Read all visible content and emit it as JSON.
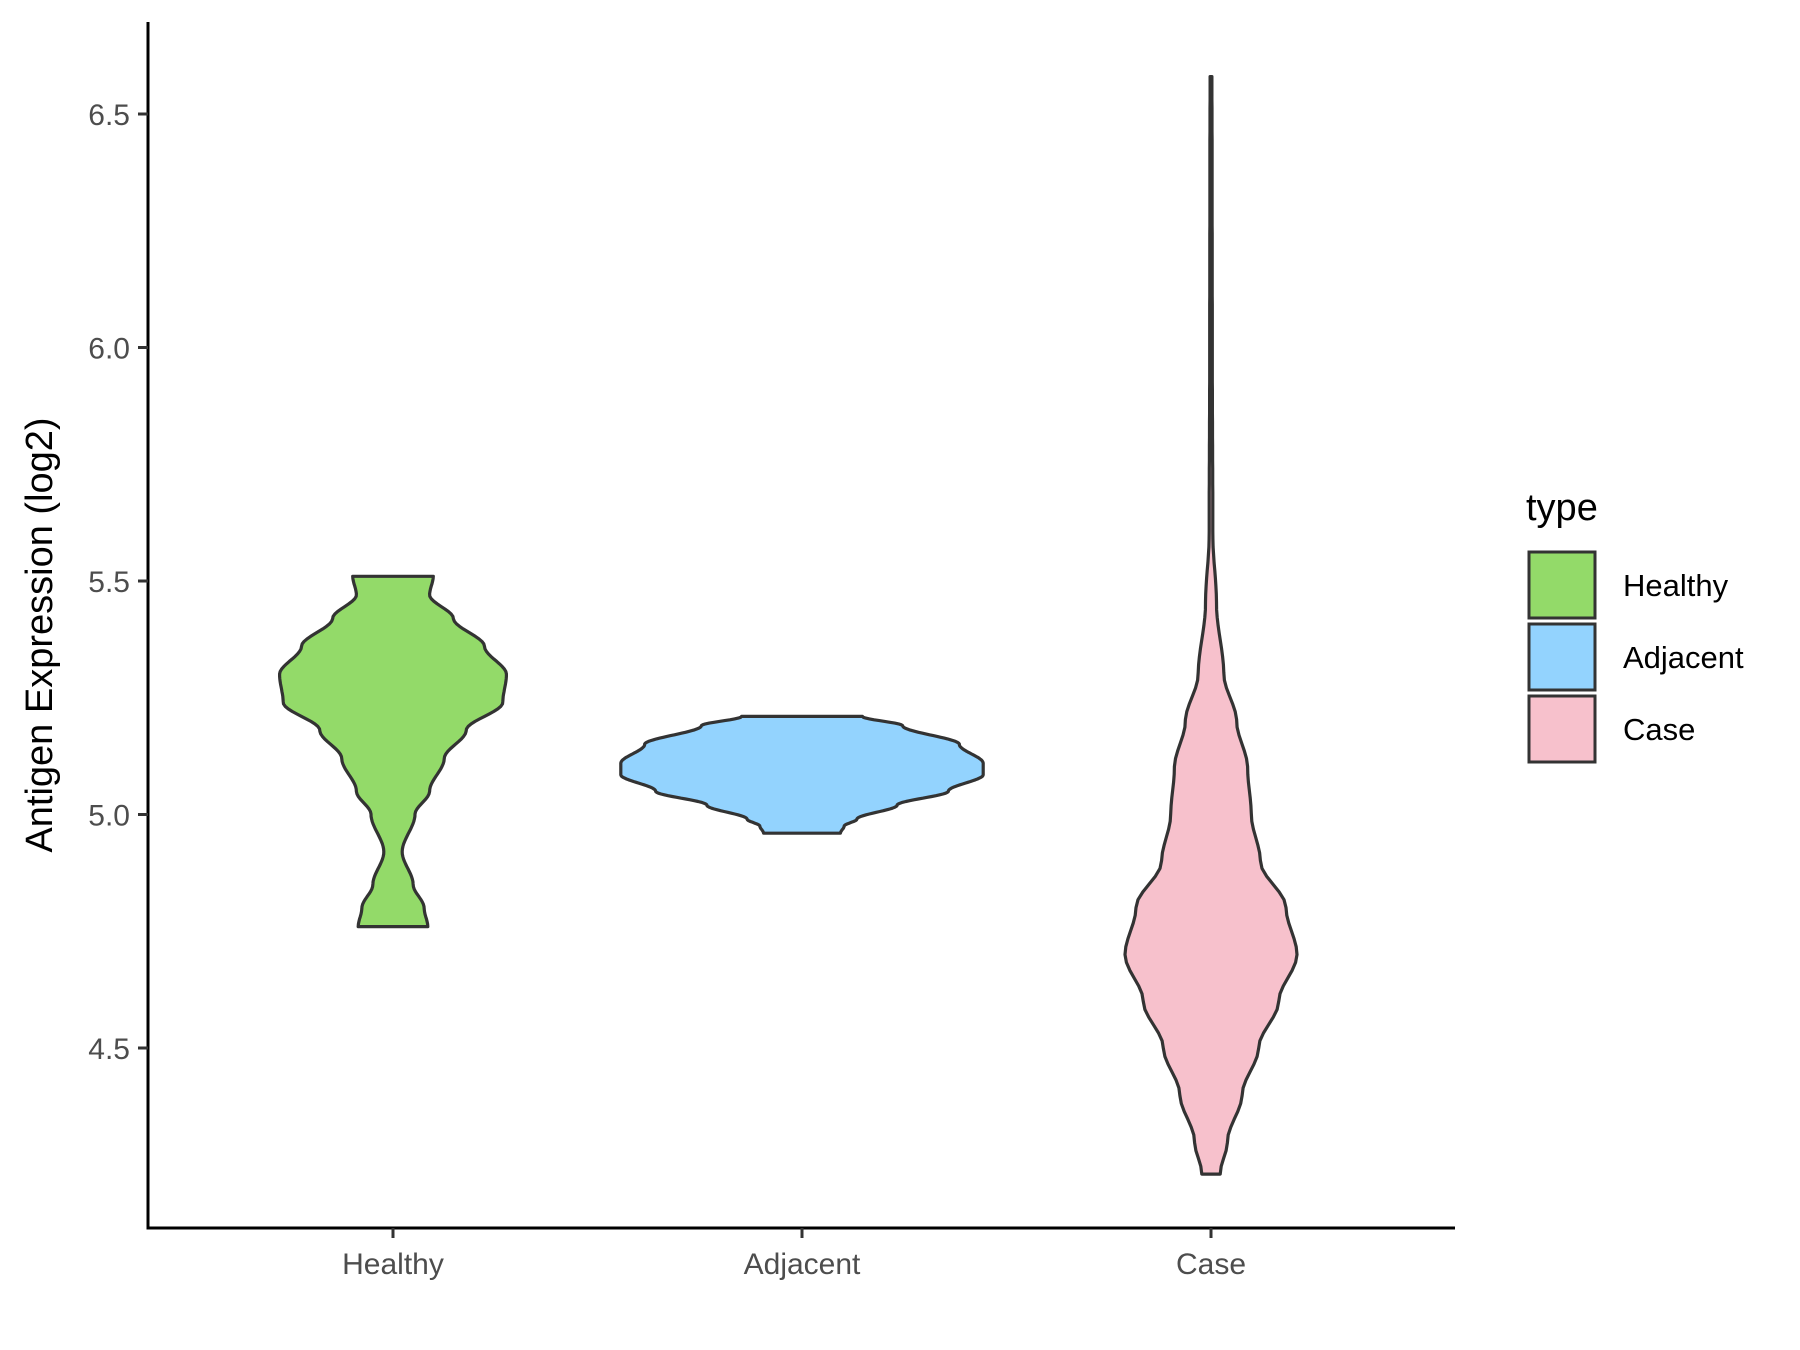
{
  "chart_data": {
    "type": "violin",
    "title": "",
    "xlabel": "",
    "ylabel": "Antigen Expression (log2)",
    "ylim": [
      4.2,
      6.7
    ],
    "y_ticks": [
      "4.5",
      "5.0",
      "5.5",
      "6.0",
      "6.5"
    ],
    "categories": [
      "Healthy",
      "Adjacent",
      "Case"
    ],
    "grid": false,
    "legend": {
      "title": "type",
      "position": "right",
      "entries": [
        {
          "label": "Healthy",
          "color": "#93da69"
        },
        {
          "label": "Adjacent",
          "color": "#93d3fe"
        },
        {
          "label": "Case",
          "color": "#f7c1cc"
        }
      ]
    },
    "series": [
      {
        "name": "Healthy",
        "color": "#93da69",
        "min": 4.76,
        "max": 5.51,
        "profile": [
          [
            4.76,
            0.19
          ],
          [
            4.8,
            0.17
          ],
          [
            4.85,
            0.11
          ],
          [
            4.92,
            0.05
          ],
          [
            5.0,
            0.12
          ],
          [
            5.05,
            0.2
          ],
          [
            5.12,
            0.28
          ],
          [
            5.18,
            0.4
          ],
          [
            5.24,
            0.6
          ],
          [
            5.3,
            0.62
          ],
          [
            5.36,
            0.5
          ],
          [
            5.42,
            0.33
          ],
          [
            5.47,
            0.2
          ],
          [
            5.51,
            0.22
          ]
        ]
      },
      {
        "name": "Adjacent",
        "color": "#93d3fe",
        "min": 4.96,
        "max": 5.21,
        "profile": [
          [
            4.96,
            0.21
          ],
          [
            4.975,
            0.23
          ],
          [
            4.99,
            0.3
          ],
          [
            5.02,
            0.52
          ],
          [
            5.05,
            0.8
          ],
          [
            5.085,
            0.99
          ],
          [
            5.11,
            0.99
          ],
          [
            5.15,
            0.86
          ],
          [
            5.19,
            0.55
          ],
          [
            5.21,
            0.33
          ]
        ]
      },
      {
        "name": "Case",
        "color": "#f7c1cc",
        "min": 4.23,
        "max": 6.58,
        "profile": [
          [
            4.23,
            0.05
          ],
          [
            4.3,
            0.09
          ],
          [
            4.4,
            0.17
          ],
          [
            4.5,
            0.26
          ],
          [
            4.6,
            0.37
          ],
          [
            4.7,
            0.47
          ],
          [
            4.8,
            0.41
          ],
          [
            4.9,
            0.27
          ],
          [
            5.0,
            0.22
          ],
          [
            5.1,
            0.2
          ],
          [
            5.2,
            0.14
          ],
          [
            5.3,
            0.07
          ],
          [
            5.45,
            0.03
          ],
          [
            5.6,
            0.01
          ],
          [
            6.0,
            0.007
          ],
          [
            6.4,
            0.006
          ],
          [
            6.58,
            0.005
          ]
        ]
      }
    ]
  }
}
